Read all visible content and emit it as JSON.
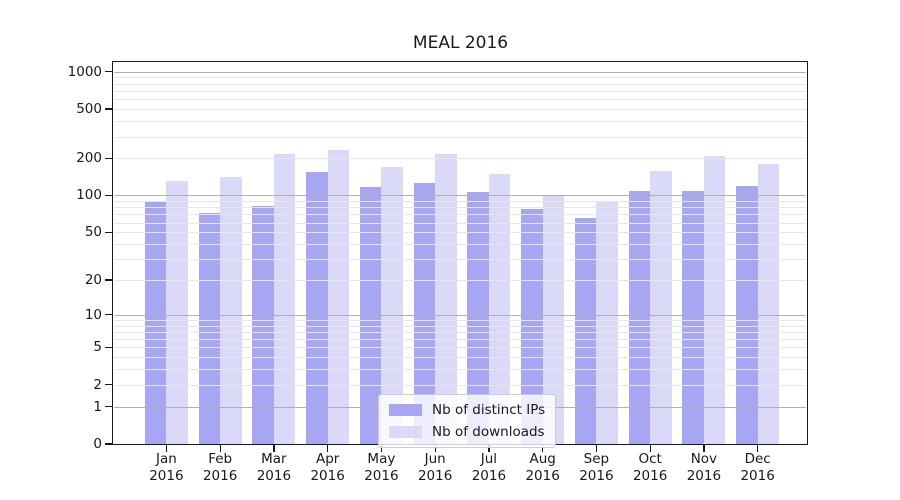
{
  "title": "MEAL 2016",
  "chart_data": {
    "type": "bar",
    "title": "MEAL 2016",
    "categories": [
      "Jan",
      "Feb",
      "Mar",
      "Apr",
      "May",
      "Jun",
      "Jul",
      "Aug",
      "Sep",
      "Oct",
      "Nov",
      "Dec"
    ],
    "category_year": "2016",
    "series": [
      {
        "name": "Nb of distinct IPs",
        "color": "#a6a6f3",
        "values": [
          89,
          72,
          82,
          154,
          118,
          125,
          106,
          77,
          65,
          109,
          109,
          119
        ]
      },
      {
        "name": "Nb of downloads",
        "color": "#dadaf8",
        "values": [
          131,
          142,
          216,
          234,
          169,
          217,
          148,
          98,
          89,
          157,
          209,
          180
        ]
      }
    ],
    "yscale": "log1p",
    "ylim": [
      0,
      1200
    ],
    "yticks": [
      0,
      1,
      2,
      5,
      10,
      20,
      50,
      100,
      200,
      500,
      1000
    ],
    "major_grid_values": [
      1,
      10,
      100,
      1000
    ],
    "minor_grid_values": [
      2,
      3,
      4,
      5,
      6,
      7,
      8,
      9,
      20,
      30,
      40,
      50,
      60,
      70,
      80,
      90,
      200,
      300,
      400,
      500,
      600,
      700,
      800,
      900
    ],
    "grid": true,
    "legend_position": "lower center",
    "xlabel": "",
    "ylabel": "",
    "colors": {
      "major_grid": "#aeaeb6",
      "minor_grid": "#e6e6ea",
      "spine": "#1a1a1a",
      "text": "#1a1a1a",
      "background": "#ffffff"
    }
  }
}
